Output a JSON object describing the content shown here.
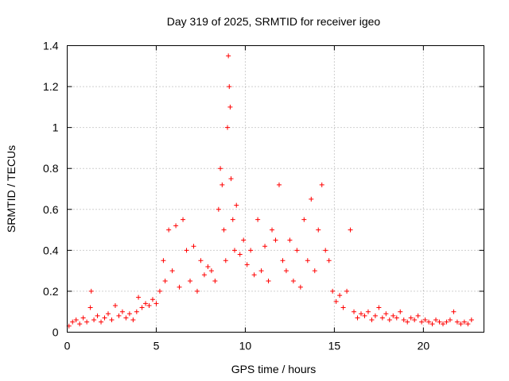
{
  "chart_data": {
    "type": "scatter",
    "title": "Day 319 of 2025, SRMTID for receiver igeo",
    "xlabel": "GPS time / hours",
    "ylabel": "SRMTID / TECUs",
    "xlim": [
      0,
      23.4
    ],
    "ylim": [
      0,
      1.4
    ],
    "xticks": [
      0,
      5,
      10,
      15,
      20
    ],
    "xtick_labels": [
      "0",
      "5",
      "10",
      "15",
      "20"
    ],
    "yticks": [
      0,
      0.2,
      0.4,
      0.6,
      0.8,
      1.0,
      1.2,
      1.4
    ],
    "ytick_labels": [
      "0",
      "0.2",
      "0.4",
      "0.6",
      "0.8",
      "1",
      "1.2",
      "1.4"
    ],
    "grid": true,
    "marker": "+",
    "color": "#ff0000",
    "series": [
      {
        "name": "SRMTID",
        "points": [
          [
            0.1,
            0.03
          ],
          [
            0.3,
            0.05
          ],
          [
            0.5,
            0.06
          ],
          [
            0.7,
            0.04
          ],
          [
            0.9,
            0.07
          ],
          [
            1.1,
            0.05
          ],
          [
            1.3,
            0.12
          ],
          [
            1.35,
            0.2
          ],
          [
            1.5,
            0.06
          ],
          [
            1.7,
            0.08
          ],
          [
            1.9,
            0.05
          ],
          [
            2.1,
            0.07
          ],
          [
            2.3,
            0.09
          ],
          [
            2.5,
            0.06
          ],
          [
            2.7,
            0.13
          ],
          [
            2.9,
            0.08
          ],
          [
            3.1,
            0.1
          ],
          [
            3.3,
            0.07
          ],
          [
            3.5,
            0.09
          ],
          [
            3.7,
            0.06
          ],
          [
            3.9,
            0.1
          ],
          [
            4.0,
            0.17
          ],
          [
            4.2,
            0.12
          ],
          [
            4.4,
            0.14
          ],
          [
            4.6,
            0.13
          ],
          [
            4.8,
            0.16
          ],
          [
            5.0,
            0.14
          ],
          [
            5.2,
            0.2
          ],
          [
            5.4,
            0.35
          ],
          [
            5.5,
            0.25
          ],
          [
            5.7,
            0.5
          ],
          [
            5.9,
            0.3
          ],
          [
            6.1,
            0.52
          ],
          [
            6.3,
            0.22
          ],
          [
            6.5,
            0.55
          ],
          [
            6.7,
            0.4
          ],
          [
            6.9,
            0.25
          ],
          [
            7.1,
            0.42
          ],
          [
            7.3,
            0.2
          ],
          [
            7.5,
            0.35
          ],
          [
            7.7,
            0.28
          ],
          [
            7.9,
            0.32
          ],
          [
            8.1,
            0.3
          ],
          [
            8.3,
            0.25
          ],
          [
            8.5,
            0.6
          ],
          [
            8.6,
            0.8
          ],
          [
            8.7,
            0.72
          ],
          [
            8.8,
            0.5
          ],
          [
            8.9,
            0.35
          ],
          [
            9.0,
            1.0
          ],
          [
            9.05,
            1.35
          ],
          [
            9.1,
            1.2
          ],
          [
            9.15,
            1.1
          ],
          [
            9.2,
            0.75
          ],
          [
            9.3,
            0.55
          ],
          [
            9.4,
            0.4
          ],
          [
            9.5,
            0.62
          ],
          [
            9.7,
            0.38
          ],
          [
            9.9,
            0.45
          ],
          [
            10.1,
            0.33
          ],
          [
            10.3,
            0.4
          ],
          [
            10.5,
            0.28
          ],
          [
            10.7,
            0.55
          ],
          [
            10.9,
            0.3
          ],
          [
            11.1,
            0.42
          ],
          [
            11.3,
            0.25
          ],
          [
            11.5,
            0.5
          ],
          [
            11.7,
            0.45
          ],
          [
            11.9,
            0.72
          ],
          [
            12.1,
            0.35
          ],
          [
            12.3,
            0.3
          ],
          [
            12.5,
            0.45
          ],
          [
            12.7,
            0.25
          ],
          [
            12.9,
            0.4
          ],
          [
            13.1,
            0.22
          ],
          [
            13.3,
            0.55
          ],
          [
            13.5,
            0.35
          ],
          [
            13.7,
            0.65
          ],
          [
            13.9,
            0.3
          ],
          [
            14.1,
            0.5
          ],
          [
            14.3,
            0.72
          ],
          [
            14.5,
            0.4
          ],
          [
            14.7,
            0.35
          ],
          [
            14.9,
            0.2
          ],
          [
            15.1,
            0.15
          ],
          [
            15.3,
            0.18
          ],
          [
            15.5,
            0.12
          ],
          [
            15.7,
            0.2
          ],
          [
            15.9,
            0.5
          ],
          [
            16.1,
            0.1
          ],
          [
            16.3,
            0.07
          ],
          [
            16.5,
            0.09
          ],
          [
            16.7,
            0.08
          ],
          [
            16.9,
            0.1
          ],
          [
            17.1,
            0.06
          ],
          [
            17.3,
            0.08
          ],
          [
            17.5,
            0.12
          ],
          [
            17.7,
            0.07
          ],
          [
            17.9,
            0.09
          ],
          [
            18.1,
            0.06
          ],
          [
            18.3,
            0.08
          ],
          [
            18.5,
            0.07
          ],
          [
            18.7,
            0.1
          ],
          [
            18.9,
            0.06
          ],
          [
            19.1,
            0.05
          ],
          [
            19.3,
            0.07
          ],
          [
            19.5,
            0.06
          ],
          [
            19.7,
            0.08
          ],
          [
            19.9,
            0.05
          ],
          [
            20.1,
            0.06
          ],
          [
            20.3,
            0.05
          ],
          [
            20.5,
            0.04
          ],
          [
            20.7,
            0.06
          ],
          [
            20.9,
            0.05
          ],
          [
            21.1,
            0.04
          ],
          [
            21.3,
            0.05
          ],
          [
            21.5,
            0.06
          ],
          [
            21.7,
            0.1
          ],
          [
            21.9,
            0.05
          ],
          [
            22.1,
            0.04
          ],
          [
            22.3,
            0.05
          ],
          [
            22.5,
            0.04
          ],
          [
            22.7,
            0.06
          ]
        ]
      }
    ]
  }
}
